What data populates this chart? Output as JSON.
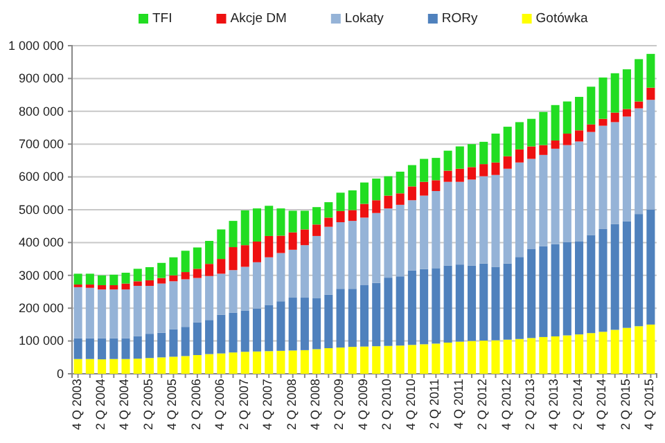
{
  "chart_data": {
    "type": "bar",
    "stacked": true,
    "grid": "y",
    "legend": "top",
    "categories": [
      "4 Q 2003",
      null,
      "2 Q 2004",
      null,
      "4 Q 2004",
      null,
      "2 Q 2005",
      null,
      "4 Q 2005",
      null,
      "2 Q 2006",
      null,
      "4 Q 2006",
      null,
      "2 Q 2007",
      null,
      "4 Q 2007",
      null,
      "2 Q 2008",
      null,
      "4 Q 2008",
      null,
      "2 Q 2009",
      null,
      "4 Q 2009",
      null,
      "2 Q 2010",
      null,
      "4 Q 2010",
      null,
      "2 Q 2011",
      null,
      "4 Q 2011",
      null,
      "2 Q 2012",
      null,
      "4 Q 2012",
      null,
      "2 Q 2013",
      null,
      "4 Q 2013",
      null,
      "2 Q 2014",
      null,
      "4 Q 2014",
      null,
      "2 Q 2015",
      null,
      "4 Q 2015"
    ],
    "ylim": [
      0,
      1000000
    ],
    "yticks": [
      0,
      {
        "value": 100000,
        "label": "100 000"
      },
      {
        "value": 200000,
        "label": "200 000"
      },
      {
        "value": 300000,
        "label": "300 000"
      },
      {
        "value": 400000,
        "label": "400 000"
      },
      {
        "value": 500000,
        "label": "500 000"
      },
      {
        "value": 600000,
        "label": "600 000"
      },
      {
        "value": 700000,
        "label": "700 000"
      },
      {
        "value": 800000,
        "label": "800 000"
      },
      {
        "value": 900000,
        "label": "900 000"
      },
      {
        "value": 1000000,
        "label": "1 000 000"
      }
    ],
    "series": [
      {
        "name": "Gotówka",
        "color": "#ffff00",
        "values": [
          45000,
          45000,
          44000,
          45000,
          45000,
          46000,
          48000,
          50000,
          52000,
          54000,
          57000,
          60000,
          62000,
          65000,
          67000,
          68000,
          69000,
          70000,
          71000,
          72000,
          75000,
          78000,
          80000,
          82000,
          83000,
          84000,
          85000,
          86000,
          88000,
          90000,
          92000,
          95000,
          98000,
          100000,
          101000,
          102000,
          104000,
          106000,
          109000,
          112000,
          114000,
          117000,
          120000,
          124000,
          128000,
          134000,
          140000,
          145000,
          150000
        ]
      },
      {
        "name": "RORy",
        "color": "#4f81bd",
        "values": [
          63000,
          63000,
          64000,
          63000,
          63000,
          69000,
          74000,
          75000,
          84000,
          89000,
          100000,
          104000,
          118000,
          121000,
          126000,
          131000,
          141000,
          151000,
          161000,
          160000,
          155000,
          163000,
          179000,
          177000,
          187000,
          193000,
          208000,
          211000,
          227000,
          229000,
          230000,
          235000,
          235000,
          230000,
          235000,
          224000,
          232000,
          250000,
          272000,
          277000,
          281000,
          284000,
          283000,
          299000,
          313000,
          322000,
          325000,
          342000,
          351000
        ]
      },
      {
        "name": "Lokaty",
        "color": "#95b3d7",
        "values": [
          156000,
          154000,
          149000,
          149000,
          149000,
          153000,
          146000,
          150000,
          146000,
          145000,
          135000,
          134000,
          125000,
          130000,
          133000,
          141000,
          145000,
          147000,
          146000,
          160000,
          190000,
          207000,
          203000,
          207000,
          206000,
          213000,
          211000,
          218000,
          214000,
          224000,
          235000,
          255000,
          252000,
          262000,
          266000,
          280000,
          289000,
          288000,
          274000,
          278000,
          291000,
          296000,
          305000,
          314000,
          315000,
          311000,
          319000,
          322000,
          334000
        ]
      },
      {
        "name": "Akcje DM",
        "color": "#ee1111",
        "values": [
          8000,
          10000,
          13000,
          13000,
          18000,
          14000,
          17000,
          17000,
          18000,
          22000,
          28000,
          37000,
          45000,
          70000,
          66000,
          63000,
          65000,
          53000,
          53000,
          48000,
          35000,
          28000,
          34000,
          33000,
          42000,
          39000,
          39000,
          35000,
          42000,
          42000,
          33000,
          34000,
          40000,
          38000,
          37000,
          38000,
          38000,
          40000,
          38000,
          30000,
          25000,
          35000,
          34000,
          23000,
          21000,
          29000,
          23000,
          21000,
          37000
        ]
      },
      {
        "name": "TFI",
        "color": "#22dd22",
        "values": [
          33000,
          33000,
          30000,
          32000,
          33000,
          38000,
          40000,
          46000,
          55000,
          65000,
          65000,
          70000,
          90000,
          80000,
          106000,
          101000,
          92000,
          83000,
          66000,
          57000,
          53000,
          47000,
          56000,
          60000,
          65000,
          66000,
          59000,
          66000,
          65000,
          70000,
          68000,
          61000,
          68000,
          70000,
          68000,
          88000,
          90000,
          83000,
          84000,
          101000,
          108000,
          98000,
          102000,
          115000,
          126000,
          120000,
          121000,
          129000,
          103000
        ]
      }
    ]
  }
}
